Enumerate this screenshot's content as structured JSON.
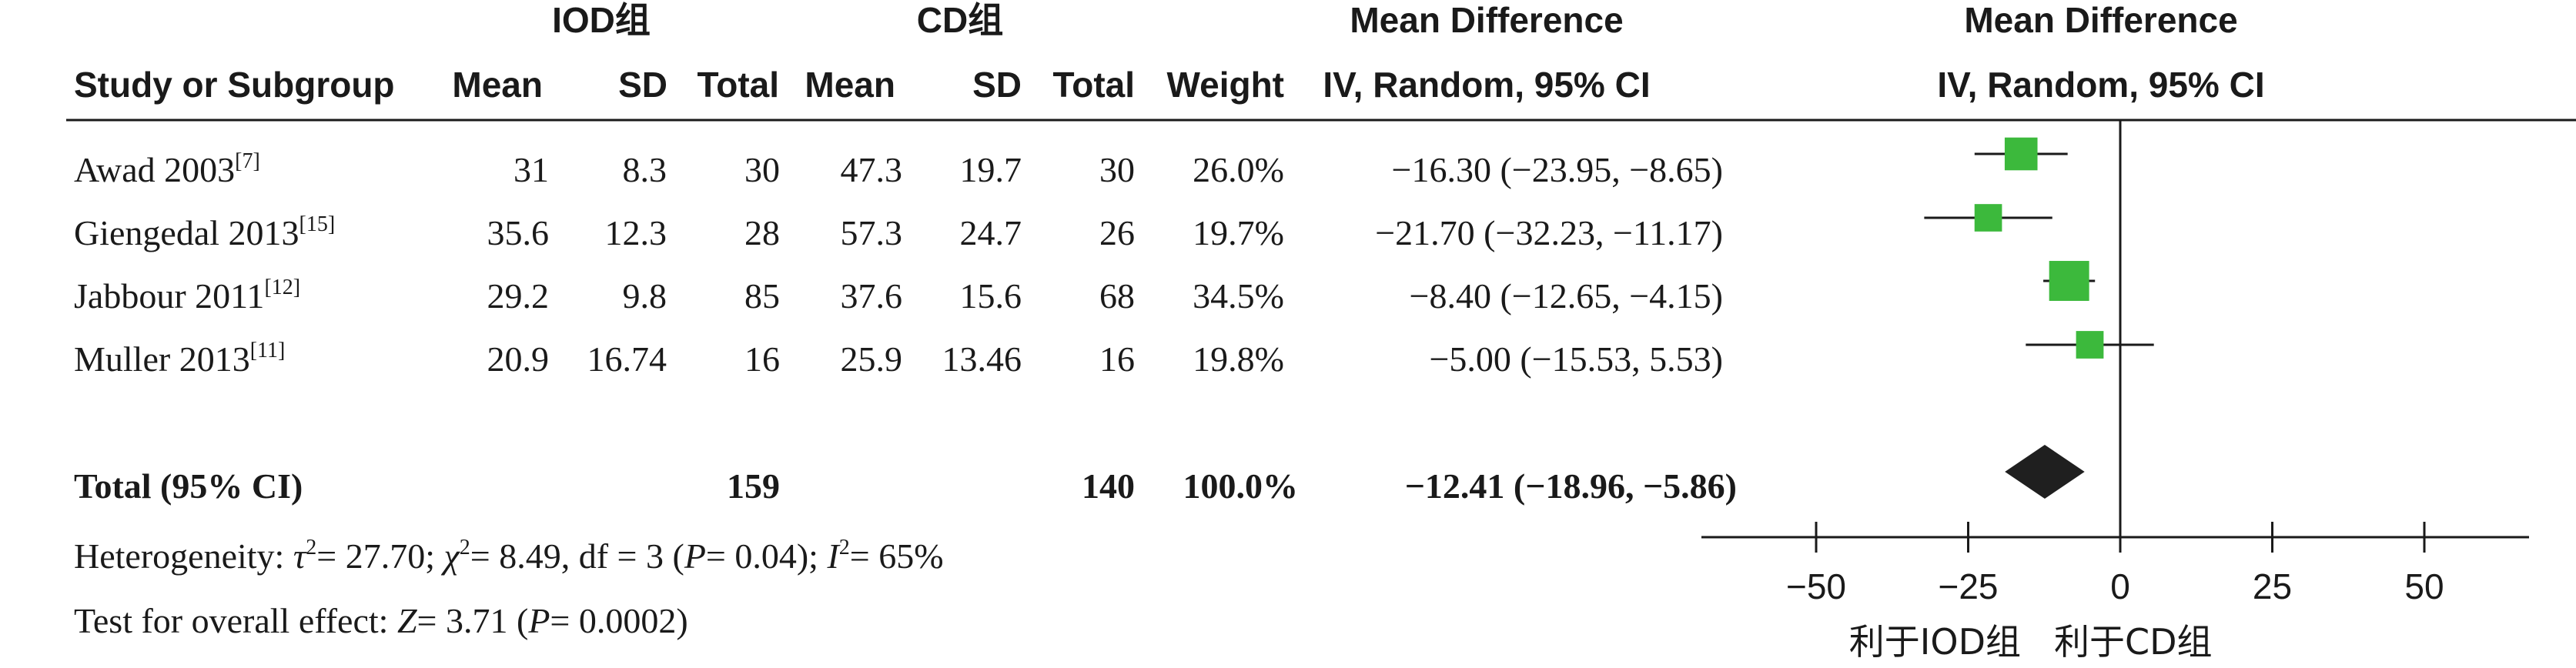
{
  "headers": {
    "iod_group": "IOD组",
    "cd_group": "CD组",
    "md_table_title": "Mean Difference",
    "md_table_method": "IV, Random, 95% CI",
    "md_plot_title": "Mean Difference",
    "md_plot_method": "IV, Random, 95% CI",
    "study_col": "Study or Subgroup",
    "mean1": "Mean",
    "sd1": "SD",
    "total1": "Total",
    "mean2": "Mean",
    "sd2": "SD",
    "total2": "Total",
    "weight": "Weight"
  },
  "studies": [
    {
      "name": "Awad 2003",
      "ref": "[7]",
      "mean1": "31",
      "sd1": "8.3",
      "total1": "30",
      "mean2": "47.3",
      "sd2": "19.7",
      "total2": "30",
      "weight": "26.0%",
      "ci_text": "−16.30 (−23.95, −8.65)"
    },
    {
      "name": "Giengedal 2013",
      "ref": "[15]",
      "mean1": "35.6",
      "sd1": "12.3",
      "total1": "28",
      "mean2": "57.3",
      "sd2": "24.7",
      "total2": "26",
      "weight": "19.7%",
      "ci_text": "−21.70 (−32.23, −11.17)"
    },
    {
      "name": "Jabbour 2011",
      "ref": "[12]",
      "mean1": "29.2",
      "sd1": "9.8",
      "total1": "85",
      "mean2": "37.6",
      "sd2": "15.6",
      "total2": "68",
      "weight": "34.5%",
      "ci_text": "−8.40 (−12.65, −4.15)"
    },
    {
      "name": "Muller 2013",
      "ref": "[11]",
      "mean1": "20.9",
      "sd1": "16.74",
      "total1": "16",
      "mean2": "25.9",
      "sd2": "13.46",
      "total2": "16",
      "weight": "19.8%",
      "ci_text": "−5.00 (−15.53, 5.53)"
    }
  ],
  "total": {
    "label": "Total (95% CI)",
    "total1": "159",
    "total2": "140",
    "weight": "100.0%",
    "ci_text": "−12.41 (−18.96, −5.86)"
  },
  "heterogeneity": {
    "prefix": "Heterogeneity: ",
    "tau": "τ",
    "tau_val": "= 27.70; ",
    "chi": "χ",
    "chi_val": "= 8.49, df = 3 (",
    "p": "P",
    "p_val": "= 0.04); ",
    "i": "I",
    "i_val": "= 65%",
    "sup": "2"
  },
  "overall": {
    "prefix": "Test for overall effect: ",
    "z": "Z",
    "z_val": "= 3.71 (",
    "p": "P",
    "p_val": "= 0.0002)"
  },
  "axis_labels": {
    "favours_left": "利于IOD组",
    "favours_right": "利于CD组"
  },
  "colors": {
    "marker": "#3cb93c",
    "diamond": "#1f1f1f",
    "text": "#1a1a1a",
    "line": "#1a1a1a"
  },
  "chart_data": {
    "type": "forest",
    "xlim": [
      -50,
      50
    ],
    "x_ticks": [
      -50,
      -25,
      0,
      25,
      50
    ],
    "x_tick_labels": [
      "−50",
      "−25",
      "0",
      "25",
      "50"
    ],
    "null_line": 0,
    "studies": [
      {
        "name": "Awad 2003",
        "md": -16.3,
        "lo": -23.95,
        "hi": -8.65,
        "weight": 26.0
      },
      {
        "name": "Giengedal 2013",
        "md": -21.7,
        "lo": -32.23,
        "hi": -11.17,
        "weight": 19.7
      },
      {
        "name": "Jabbour 2011",
        "md": -8.4,
        "lo": -12.65,
        "hi": -4.15,
        "weight": 34.5
      },
      {
        "name": "Muller 2013",
        "md": -5.0,
        "lo": -15.53,
        "hi": 5.53,
        "weight": 19.8
      }
    ],
    "pooled": {
      "md": -12.41,
      "lo": -18.96,
      "hi": -5.86
    }
  }
}
